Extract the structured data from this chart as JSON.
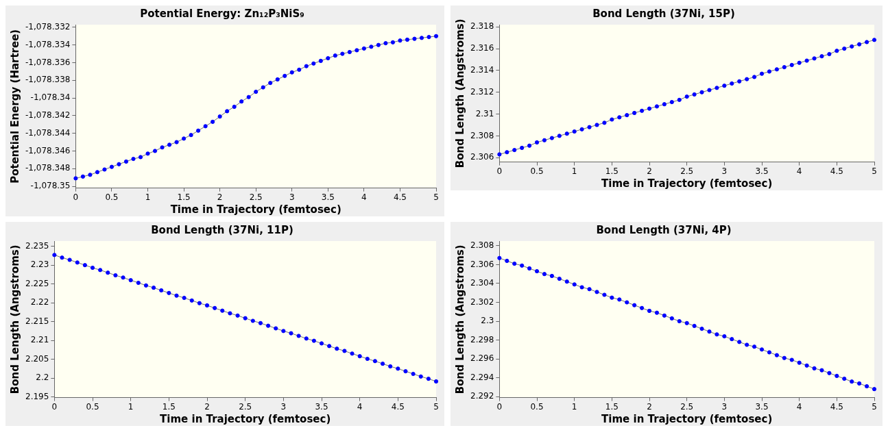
{
  "chart_data": [
    {
      "type": "line",
      "title": "Potential Energy: Zn₁₂P₃NiS₉",
      "xlabel": "Time in Trajectory (femtosec)",
      "ylabel": "Potential Energy (Hartree)",
      "marker": "circle",
      "line_style": "solid",
      "grid": false,
      "legend": false,
      "x": [
        0,
        0.1,
        0.2,
        0.3,
        0.4,
        0.5,
        0.6,
        0.7,
        0.8,
        0.9,
        1,
        1.1,
        1.2,
        1.3,
        1.4,
        1.5,
        1.6,
        1.7,
        1.8,
        1.9,
        2,
        2.1,
        2.2,
        2.3,
        2.4,
        2.5,
        2.6,
        2.7,
        2.8,
        2.9,
        3,
        3.1,
        3.2,
        3.3,
        3.4,
        3.5,
        3.6,
        3.7,
        3.8,
        3.9,
        4,
        4.1,
        4.2,
        4.3,
        4.4,
        4.5,
        4.6,
        4.7,
        4.8,
        4.9,
        5
      ],
      "series": [
        {
          "color": "#0000ff",
          "values": [
            -1078.3491,
            -1078.3489,
            -1078.3487,
            -1078.3484,
            -1078.3481,
            -1078.3478,
            -1078.3475,
            -1078.3472,
            -1078.3469,
            -1078.3467,
            -1078.3463,
            -1078.346,
            -1078.3456,
            -1078.3453,
            -1078.345,
            -1078.3446,
            -1078.3442,
            -1078.3437,
            -1078.3432,
            -1078.3427,
            -1078.3421,
            -1078.3415,
            -1078.341,
            -1078.3404,
            -1078.3399,
            -1078.3393,
            -1078.3388,
            -1078.3383,
            -1078.3379,
            -1078.3375,
            -1078.3371,
            -1078.3368,
            -1078.3364,
            -1078.3361,
            -1078.3358,
            -1078.3355,
            -1078.3352,
            -1078.335,
            -1078.3348,
            -1078.3346,
            -1078.3344,
            -1078.3342,
            -1078.334,
            -1078.3338,
            -1078.3337,
            -1078.3335,
            -1078.3334,
            -1078.3333,
            -1078.3332,
            -1078.3331,
            -1078.333
          ]
        }
      ],
      "xlim": [
        0,
        5
      ],
      "xticks": [
        0,
        0.5,
        1,
        1.5,
        2,
        2.5,
        3,
        3.5,
        4,
        4.5,
        5
      ],
      "ylim": [
        -1078.3502,
        -1078.3317
      ],
      "yticks": [
        {
          "value": -1078.35,
          "label": "-1,078.35"
        },
        {
          "value": -1078.348,
          "label": "-1,078.348"
        },
        {
          "value": -1078.346,
          "label": "-1,078.346"
        },
        {
          "value": -1078.344,
          "label": "-1,078.344"
        },
        {
          "value": -1078.342,
          "label": "-1,078.342"
        },
        {
          "value": -1078.34,
          "label": "-1,078.34"
        },
        {
          "value": -1078.338,
          "label": "-1,078.338"
        },
        {
          "value": -1078.336,
          "label": "-1,078.336"
        },
        {
          "value": -1078.334,
          "label": "-1,078.334"
        },
        {
          "value": -1078.332,
          "label": "-1,078.332"
        }
      ]
    },
    {
      "type": "line",
      "title": "Bond Length (37Ni, 15P)",
      "xlabel": "Time in Trajectory (femtosec)",
      "ylabel": "Bond Length (Angstroms)",
      "marker": "circle",
      "line_style": "solid",
      "grid": false,
      "legend": false,
      "x": [
        0,
        0.1,
        0.2,
        0.3,
        0.4,
        0.5,
        0.6,
        0.7,
        0.8,
        0.9,
        1,
        1.1,
        1.2,
        1.3,
        1.4,
        1.5,
        1.6,
        1.7,
        1.8,
        1.9,
        2,
        2.1,
        2.2,
        2.3,
        2.4,
        2.5,
        2.6,
        2.7,
        2.8,
        2.9,
        3,
        3.1,
        3.2,
        3.3,
        3.4,
        3.5,
        3.6,
        3.7,
        3.8,
        3.9,
        4,
        4.1,
        4.2,
        4.3,
        4.4,
        4.5,
        4.6,
        4.7,
        4.8,
        4.9,
        5
      ],
      "series": [
        {
          "color": "#0000ff",
          "values": [
            2.3063,
            2.3065,
            2.3067,
            2.3069,
            2.3071,
            2.3074,
            2.3076,
            2.3078,
            2.308,
            2.3082,
            2.3084,
            2.3086,
            2.3088,
            2.309,
            2.3092,
            2.3095,
            2.3097,
            2.3099,
            2.3101,
            2.3103,
            2.3105,
            2.3107,
            2.3109,
            2.3111,
            2.3113,
            2.3116,
            2.3118,
            2.312,
            2.3122,
            2.3124,
            2.3126,
            2.3128,
            2.313,
            2.3132,
            2.3134,
            2.3137,
            2.3139,
            2.3141,
            2.3143,
            2.3145,
            2.3147,
            2.3149,
            2.3151,
            2.3153,
            2.3155,
            2.3158,
            2.316,
            2.3162,
            2.3164,
            2.3166,
            2.3168
          ]
        }
      ],
      "xlim": [
        0,
        5
      ],
      "xticks": [
        0,
        0.5,
        1,
        1.5,
        2,
        2.5,
        3,
        3.5,
        4,
        4.5,
        5
      ],
      "ylim": [
        2.3056,
        2.3182
      ],
      "yticks": [
        2.306,
        2.308,
        2.31,
        2.312,
        2.314,
        2.316,
        2.318
      ]
    },
    {
      "type": "line",
      "title": "Bond Length (37Ni, 11P)",
      "xlabel": "Time in Trajectory (femtosec)",
      "ylabel": "Bond Length (Angstroms)",
      "marker": "circle",
      "line_style": "solid",
      "grid": false,
      "legend": false,
      "x": [
        0,
        0.1,
        0.2,
        0.3,
        0.4,
        0.5,
        0.6,
        0.7,
        0.8,
        0.9,
        1,
        1.1,
        1.2,
        1.3,
        1.4,
        1.5,
        1.6,
        1.7,
        1.8,
        1.9,
        2,
        2.1,
        2.2,
        2.3,
        2.4,
        2.5,
        2.6,
        2.7,
        2.8,
        2.9,
        3,
        3.1,
        3.2,
        3.3,
        3.4,
        3.5,
        3.6,
        3.7,
        3.8,
        3.9,
        4,
        4.1,
        4.2,
        4.3,
        4.4,
        4.5,
        4.6,
        4.7,
        4.8,
        4.9,
        5
      ],
      "series": [
        {
          "color": "#0000ff",
          "values": [
            2.2327,
            2.232,
            2.2314,
            2.2307,
            2.23,
            2.2293,
            2.2287,
            2.228,
            2.2273,
            2.2267,
            2.226,
            2.2253,
            2.2246,
            2.224,
            2.2233,
            2.2226,
            2.2219,
            2.2213,
            2.2206,
            2.2199,
            2.2193,
            2.2186,
            2.2179,
            2.2172,
            2.2166,
            2.2159,
            2.2152,
            2.2146,
            2.2139,
            2.2132,
            2.2125,
            2.2119,
            2.2112,
            2.2105,
            2.2099,
            2.2092,
            2.2085,
            2.2078,
            2.2072,
            2.2065,
            2.2058,
            2.2051,
            2.2045,
            2.2038,
            2.2031,
            2.2025,
            2.2018,
            2.2011,
            2.2004,
            2.1998,
            2.1991
          ]
        }
      ],
      "xlim": [
        0,
        5
      ],
      "xticks": [
        0,
        0.5,
        1,
        1.5,
        2,
        2.5,
        3,
        3.5,
        4,
        4.5,
        5
      ],
      "ylim": [
        2.1948,
        2.2364
      ],
      "yticks": [
        2.195,
        2.2,
        2.205,
        2.21,
        2.215,
        2.22,
        2.225,
        2.23,
        2.235
      ]
    },
    {
      "type": "line",
      "title": "Bond Length (37Ni, 4P)",
      "xlabel": "Time in Trajectory (femtosec)",
      "ylabel": "Bond Length (Angstroms)",
      "marker": "circle",
      "line_style": "solid",
      "grid": false,
      "legend": false,
      "x": [
        0,
        0.1,
        0.2,
        0.3,
        0.4,
        0.5,
        0.6,
        0.7,
        0.8,
        0.9,
        1,
        1.1,
        1.2,
        1.3,
        1.4,
        1.5,
        1.6,
        1.7,
        1.8,
        1.9,
        2,
        2.1,
        2.2,
        2.3,
        2.4,
        2.5,
        2.6,
        2.7,
        2.8,
        2.9,
        3,
        3.1,
        3.2,
        3.3,
        3.4,
        3.5,
        3.6,
        3.7,
        3.8,
        3.9,
        4,
        4.1,
        4.2,
        4.3,
        4.4,
        4.5,
        4.6,
        4.7,
        4.8,
        4.9,
        5
      ],
      "series": [
        {
          "color": "#0000ff",
          "values": [
            2.3067,
            2.3064,
            2.3061,
            2.3059,
            2.3056,
            2.3053,
            2.305,
            2.3048,
            2.3045,
            2.3042,
            2.3039,
            2.3036,
            2.3034,
            2.3031,
            2.3028,
            2.3025,
            2.3023,
            2.302,
            2.3017,
            2.3014,
            2.3011,
            2.3009,
            2.3006,
            2.3003,
            2.3,
            2.2998,
            2.2995,
            2.2992,
            2.2989,
            2.2986,
            2.2984,
            2.2981,
            2.2978,
            2.2975,
            2.2973,
            2.297,
            2.2967,
            2.2964,
            2.2961,
            2.2959,
            2.2956,
            2.2953,
            2.295,
            2.2948,
            2.2945,
            2.2942,
            2.2939,
            2.2936,
            2.2934,
            2.2931,
            2.2928
          ]
        }
      ],
      "xlim": [
        0,
        5
      ],
      "xticks": [
        0,
        0.5,
        1,
        1.5,
        2,
        2.5,
        3,
        3.5,
        4,
        4.5,
        5
      ],
      "ylim": [
        2.2919,
        2.3085
      ],
      "yticks": [
        2.292,
        2.294,
        2.296,
        2.298,
        2.3,
        2.302,
        2.304,
        2.306,
        2.308
      ]
    }
  ]
}
